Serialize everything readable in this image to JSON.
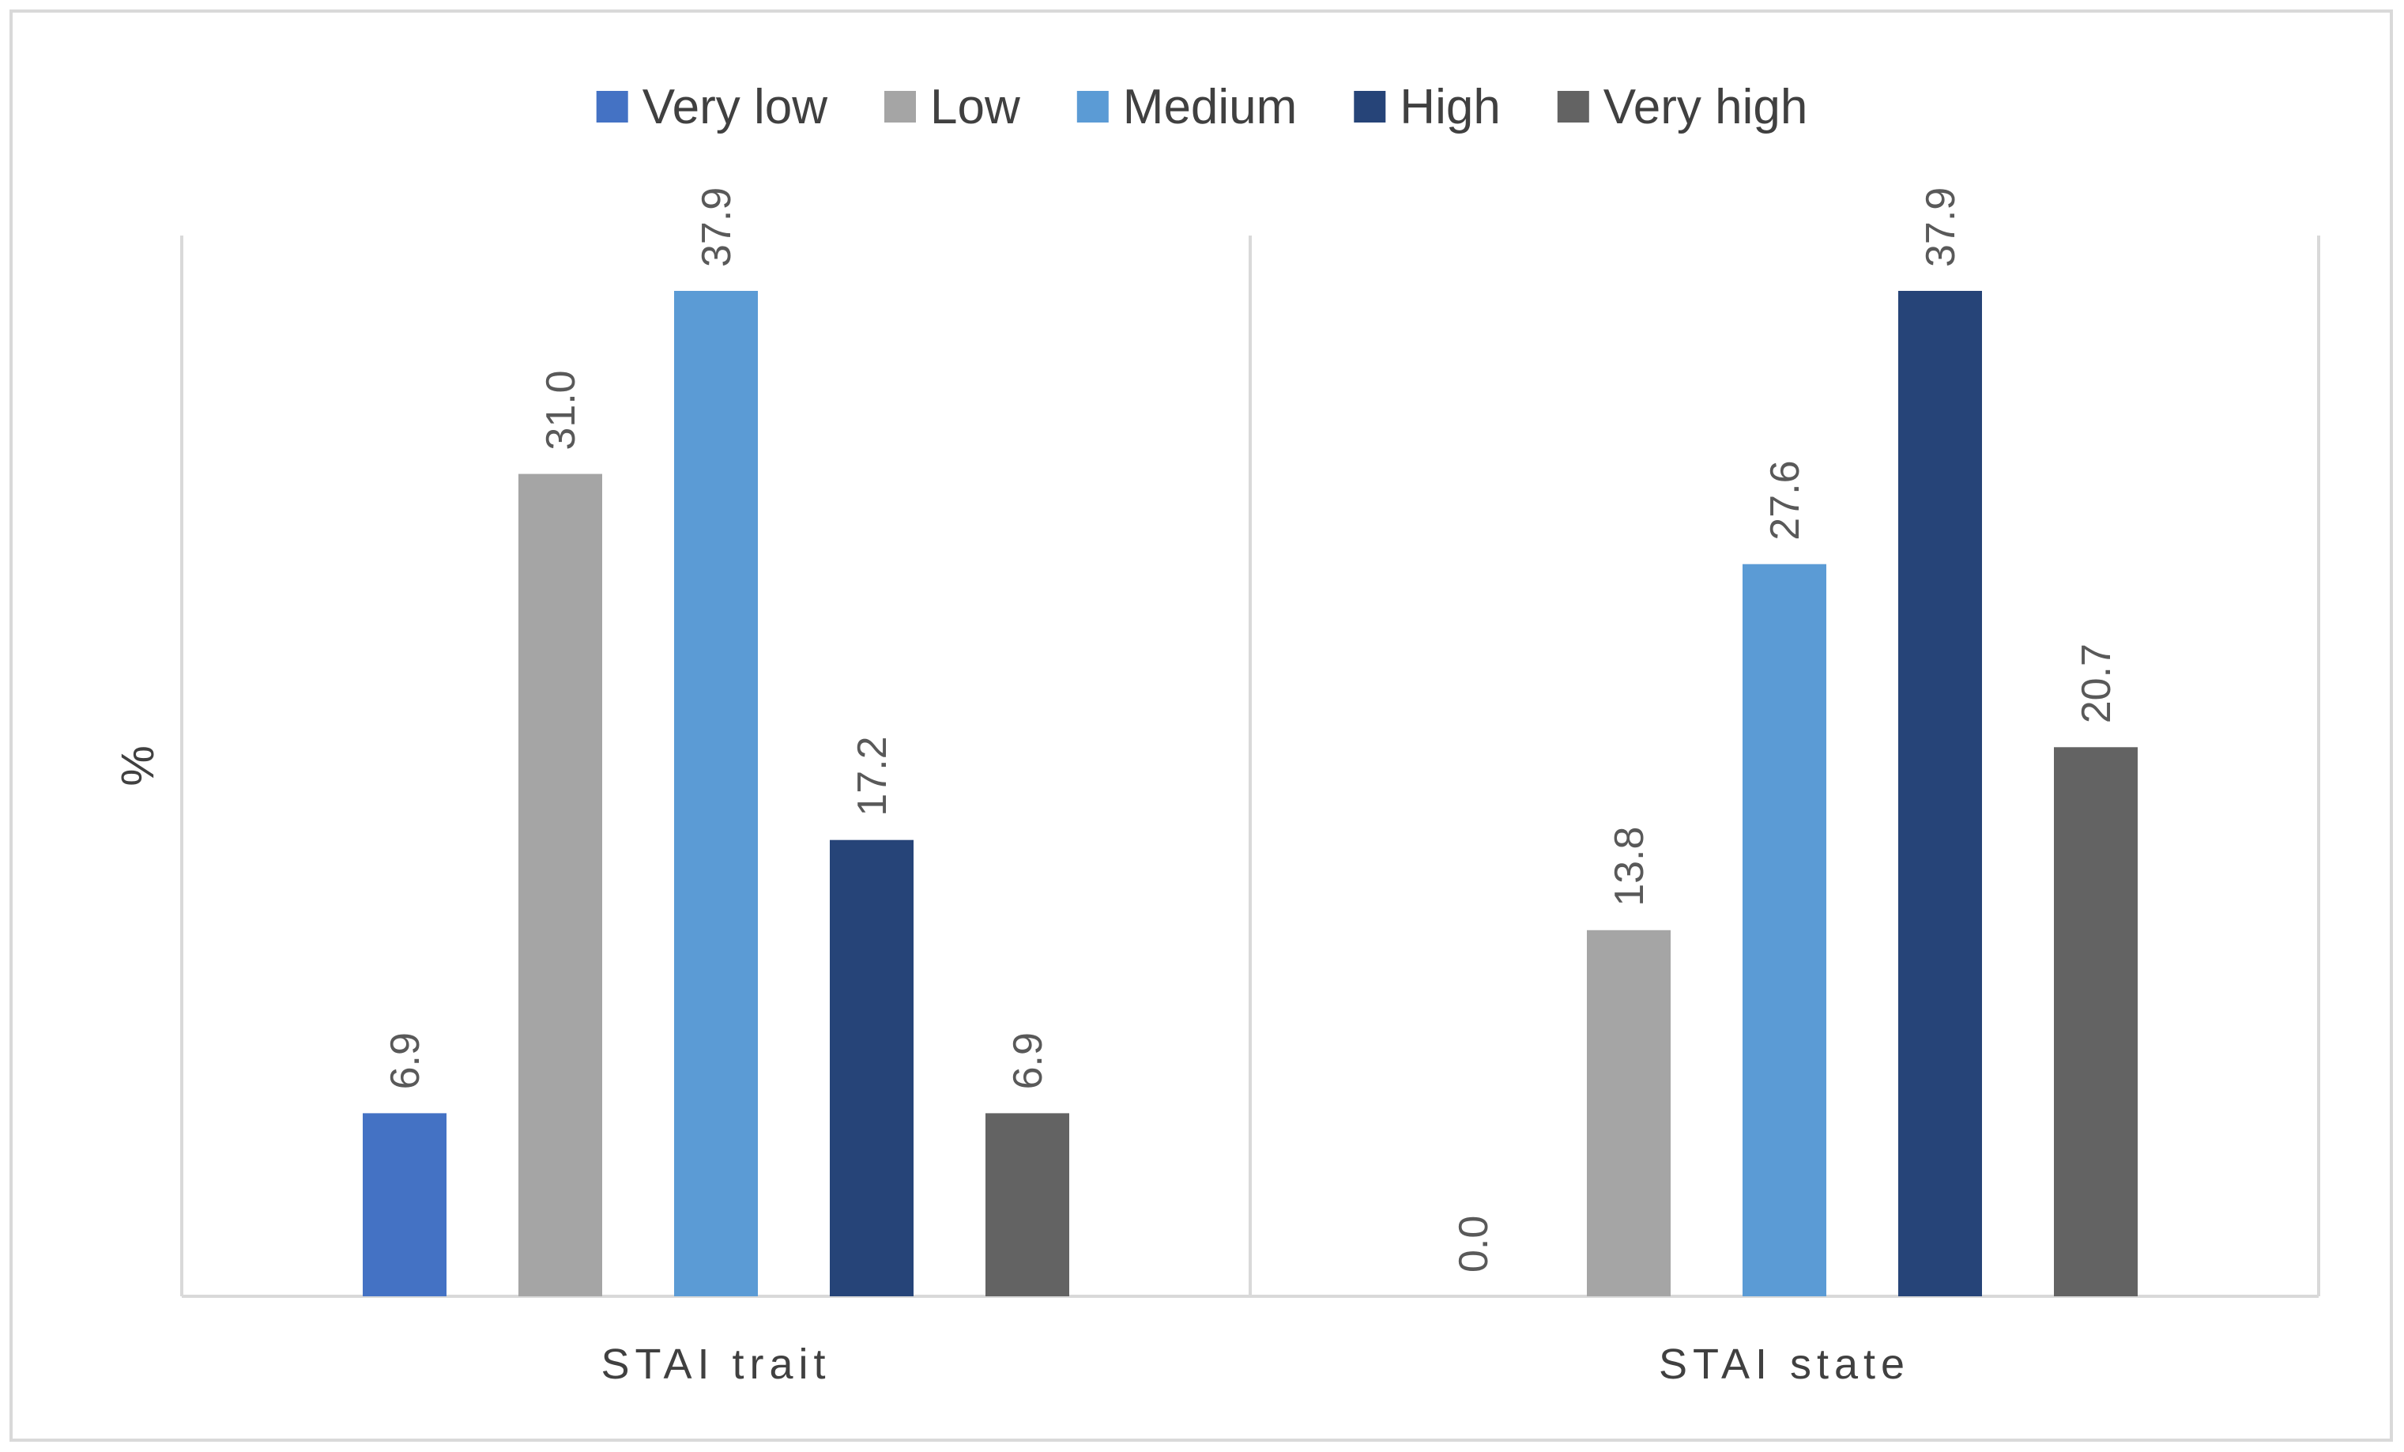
{
  "chart_data": {
    "type": "bar",
    "title": "",
    "xlabel": "",
    "ylabel": "%",
    "ylim": [
      0,
      40
    ],
    "grid": false,
    "legend_position": "top",
    "categories": [
      "STAI trait",
      "STAI state"
    ],
    "series": [
      {
        "name": "Very low",
        "color": "#4472C4",
        "values": [
          6.9,
          0.0
        ],
        "labels": [
          "6.9",
          "0.0"
        ]
      },
      {
        "name": "Low",
        "color": "#A5A5A5",
        "values": [
          31.0,
          13.8
        ],
        "labels": [
          "31.0",
          "13.8"
        ]
      },
      {
        "name": "Medium",
        "color": "#5B9BD5",
        "values": [
          37.9,
          27.6
        ],
        "labels": [
          "37.9",
          "27.6"
        ]
      },
      {
        "name": "High",
        "color": "#264478",
        "values": [
          17.2,
          37.9
        ],
        "labels": [
          "17.2",
          "37.9"
        ]
      },
      {
        "name": "Very high",
        "color": "#636363",
        "values": [
          6.9,
          20.7
        ],
        "labels": [
          "6.9",
          "20.7"
        ]
      }
    ]
  }
}
